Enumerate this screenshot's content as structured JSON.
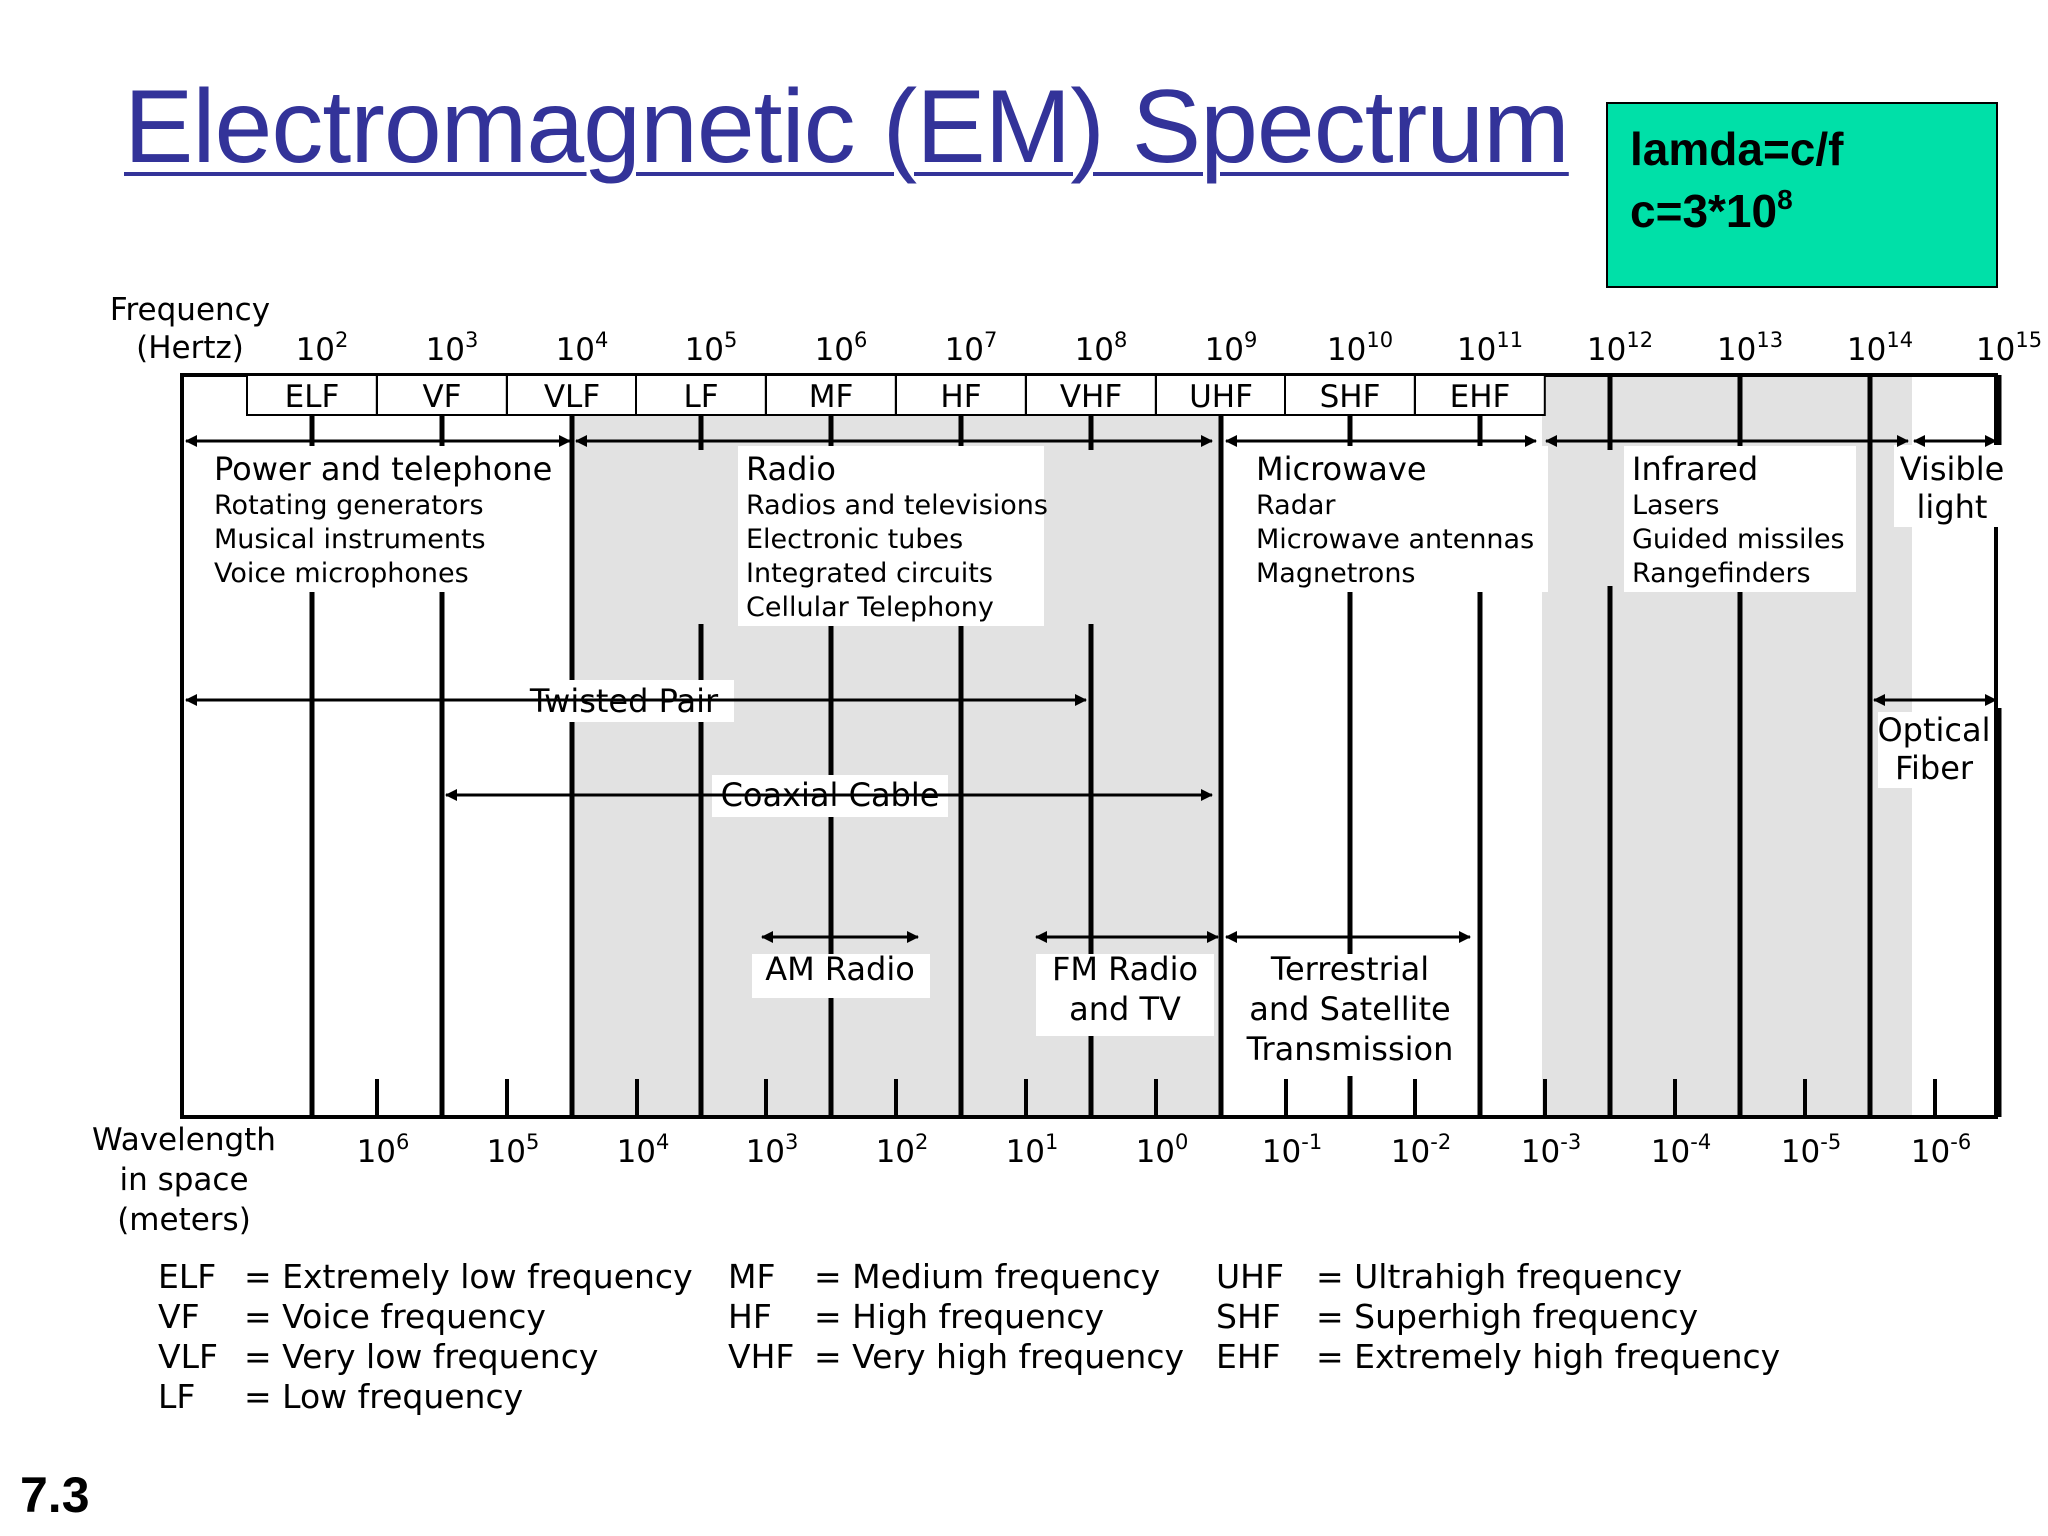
{
  "title": "Electromagnetic (EM) Spectrum",
  "formula_box": {
    "line1": "lamda=c/f",
    "line2_base": "c=3*10",
    "line2_exp": "8"
  },
  "slide_number": "7.3",
  "frequency_axis": {
    "label": [
      "Frequency",
      "(Hertz)"
    ],
    "ticks": [
      {
        "base": "10",
        "exp": "2"
      },
      {
        "base": "10",
        "exp": "3"
      },
      {
        "base": "10",
        "exp": "4"
      },
      {
        "base": "10",
        "exp": "5"
      },
      {
        "base": "10",
        "exp": "6"
      },
      {
        "base": "10",
        "exp": "7"
      },
      {
        "base": "10",
        "exp": "8"
      },
      {
        "base": "10",
        "exp": "9"
      },
      {
        "base": "10",
        "exp": "10"
      },
      {
        "base": "10",
        "exp": "11"
      },
      {
        "base": "10",
        "exp": "12"
      },
      {
        "base": "10",
        "exp": "13"
      },
      {
        "base": "10",
        "exp": "14"
      },
      {
        "base": "10",
        "exp": "15"
      }
    ]
  },
  "bands": [
    "ELF",
    "VF",
    "VLF",
    "LF",
    "MF",
    "HF",
    "VHF",
    "UHF",
    "SHF",
    "EHF"
  ],
  "wavelength_axis": {
    "label": [
      "Wavelength",
      "in space",
      "(meters)"
    ],
    "ticks": [
      {
        "base": "10",
        "exp": "6"
      },
      {
        "base": "10",
        "exp": "5"
      },
      {
        "base": "10",
        "exp": "4"
      },
      {
        "base": "10",
        "exp": "3"
      },
      {
        "base": "10",
        "exp": "2"
      },
      {
        "base": "10",
        "exp": "1"
      },
      {
        "base": "10",
        "exp": "0"
      },
      {
        "base": "10",
        "exp": "-1"
      },
      {
        "base": "10",
        "exp": "-2"
      },
      {
        "base": "10",
        "exp": "-3"
      },
      {
        "base": "10",
        "exp": "-4"
      },
      {
        "base": "10",
        "exp": "-5"
      },
      {
        "base": "10",
        "exp": "-6"
      }
    ]
  },
  "regions": {
    "power": {
      "heading": "Power and telephone",
      "items": [
        "Rotating generators",
        "Musical instruments",
        "Voice microphones"
      ]
    },
    "radio": {
      "heading": "Radio",
      "items": [
        "Radios and televisions",
        "Electronic tubes",
        "Integrated circuits",
        "Cellular Telephony"
      ]
    },
    "microwave": {
      "heading": "Microwave",
      "items": [
        "Radar",
        "Microwave antennas",
        "Magnetrons"
      ]
    },
    "infrared": {
      "heading": "Infrared",
      "items": [
        "Lasers",
        "Guided missiles",
        "Rangefinders"
      ]
    },
    "visible": [
      "Visible",
      "light"
    ]
  },
  "media": {
    "twisted_pair": "Twisted Pair",
    "coaxial_cable": "Coaxial Cable",
    "optical_fiber": [
      "Optical",
      "Fiber"
    ],
    "am_radio": "AM Radio",
    "fm_radio": [
      "FM Radio",
      "and TV"
    ],
    "terrestrial": [
      "Terrestrial",
      "and Satellite",
      "Transmission"
    ]
  },
  "legend": {
    "col1": [
      {
        "abbr": "ELF",
        "text": "= Extremely low frequency"
      },
      {
        "abbr": "VF",
        "text": "= Voice frequency"
      },
      {
        "abbr": "VLF",
        "text": "= Very low frequency"
      },
      {
        "abbr": "LF",
        "text": "= Low frequency"
      }
    ],
    "col2": [
      {
        "abbr": "MF",
        "text": "= Medium frequency"
      },
      {
        "abbr": "HF",
        "text": "= High frequency"
      },
      {
        "abbr": "VHF",
        "text": "= Very high frequency"
      }
    ],
    "col3": [
      {
        "abbr": "UHF",
        "text": "= Ultrahigh frequency"
      },
      {
        "abbr": "SHF",
        "text": "= Superhigh frequency"
      },
      {
        "abbr": "EHF",
        "text": "= Extremely high frequency"
      }
    ]
  },
  "colors": {
    "title": "#333399",
    "formula_bg": "#00e0a8",
    "shade": "#e2e2e2"
  }
}
